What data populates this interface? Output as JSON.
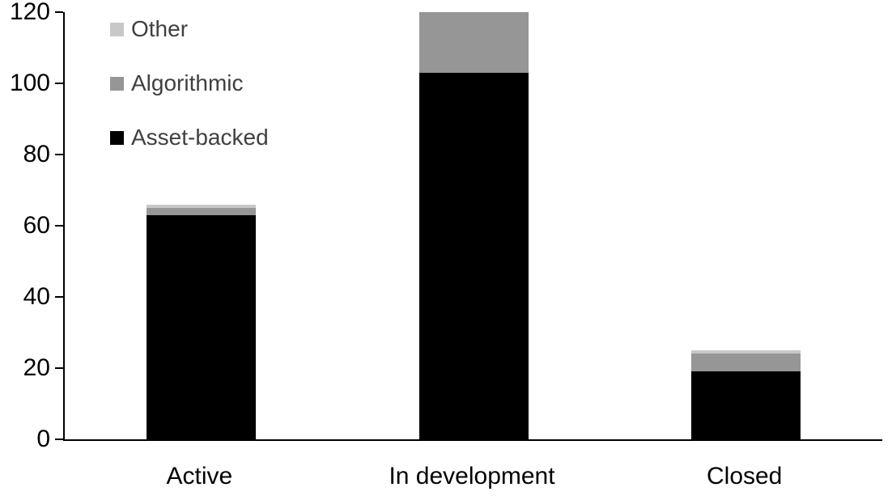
{
  "chart_data": {
    "type": "bar",
    "stacked": true,
    "title": "",
    "xlabel": "",
    "ylabel": "",
    "categories": [
      "Active",
      "In development",
      "Closed"
    ],
    "series": [
      {
        "name": "Asset-backed",
        "color": "#000000",
        "values": [
          63,
          103,
          19
        ]
      },
      {
        "name": "Algorithmic",
        "color": "#969696",
        "values": [
          2,
          17,
          5
        ]
      },
      {
        "name": "Other",
        "color": "#c8c8c8",
        "values": [
          1,
          0,
          1
        ]
      }
    ],
    "legend_items": [
      {
        "label": "Other",
        "color": "#c8c8c8"
      },
      {
        "label": "Algorithmic",
        "color": "#969696"
      },
      {
        "label": "Asset-backed",
        "color": "#000000"
      }
    ],
    "ylim": [
      0,
      120
    ],
    "yticks": [
      0,
      20,
      40,
      60,
      80,
      100,
      120
    ],
    "grid": false,
    "legend_position": "top-left-inside",
    "axis_color": "#000000"
  }
}
